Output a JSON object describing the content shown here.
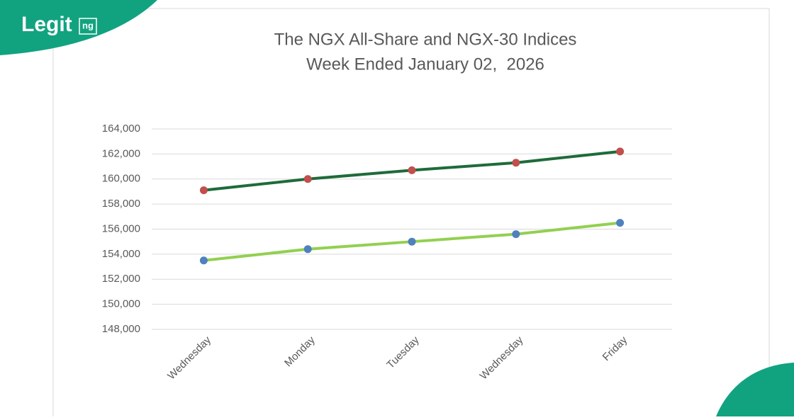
{
  "logo": {
    "name": "Legit",
    "suffix": "ng"
  },
  "chart_data": {
    "type": "line",
    "title": "The NGX All-Share and NGX-30 Indices",
    "subtitle": "Week Ended January 02,  2026",
    "categories": [
      "Wednesday",
      "Monday",
      "Tuesday",
      "Wednesday",
      "Friday"
    ],
    "series": [
      {
        "color": "#1e6b3a",
        "marker_color": "#c0504d",
        "values": [
          159100,
          160000,
          160700,
          161300,
          162200
        ]
      },
      {
        "color": "#92d050",
        "marker_color": "#4f81bd",
        "values": [
          153500,
          154400,
          155000,
          155600,
          156500
        ]
      }
    ],
    "ylim": [
      148000,
      164000
    ],
    "yticks": [
      {
        "value": 148000,
        "label": "148,000"
      },
      {
        "value": 150000,
        "label": "150,000"
      },
      {
        "value": 152000,
        "label": "152,000"
      },
      {
        "value": 154000,
        "label": "154,000"
      },
      {
        "value": 156000,
        "label": "156,000"
      },
      {
        "value": 158000,
        "label": "158,000"
      },
      {
        "value": 160000,
        "label": "160,000"
      },
      {
        "value": 162000,
        "label": "162,000"
      },
      {
        "value": 164000,
        "label": "164,000"
      }
    ],
    "grid": true
  }
}
